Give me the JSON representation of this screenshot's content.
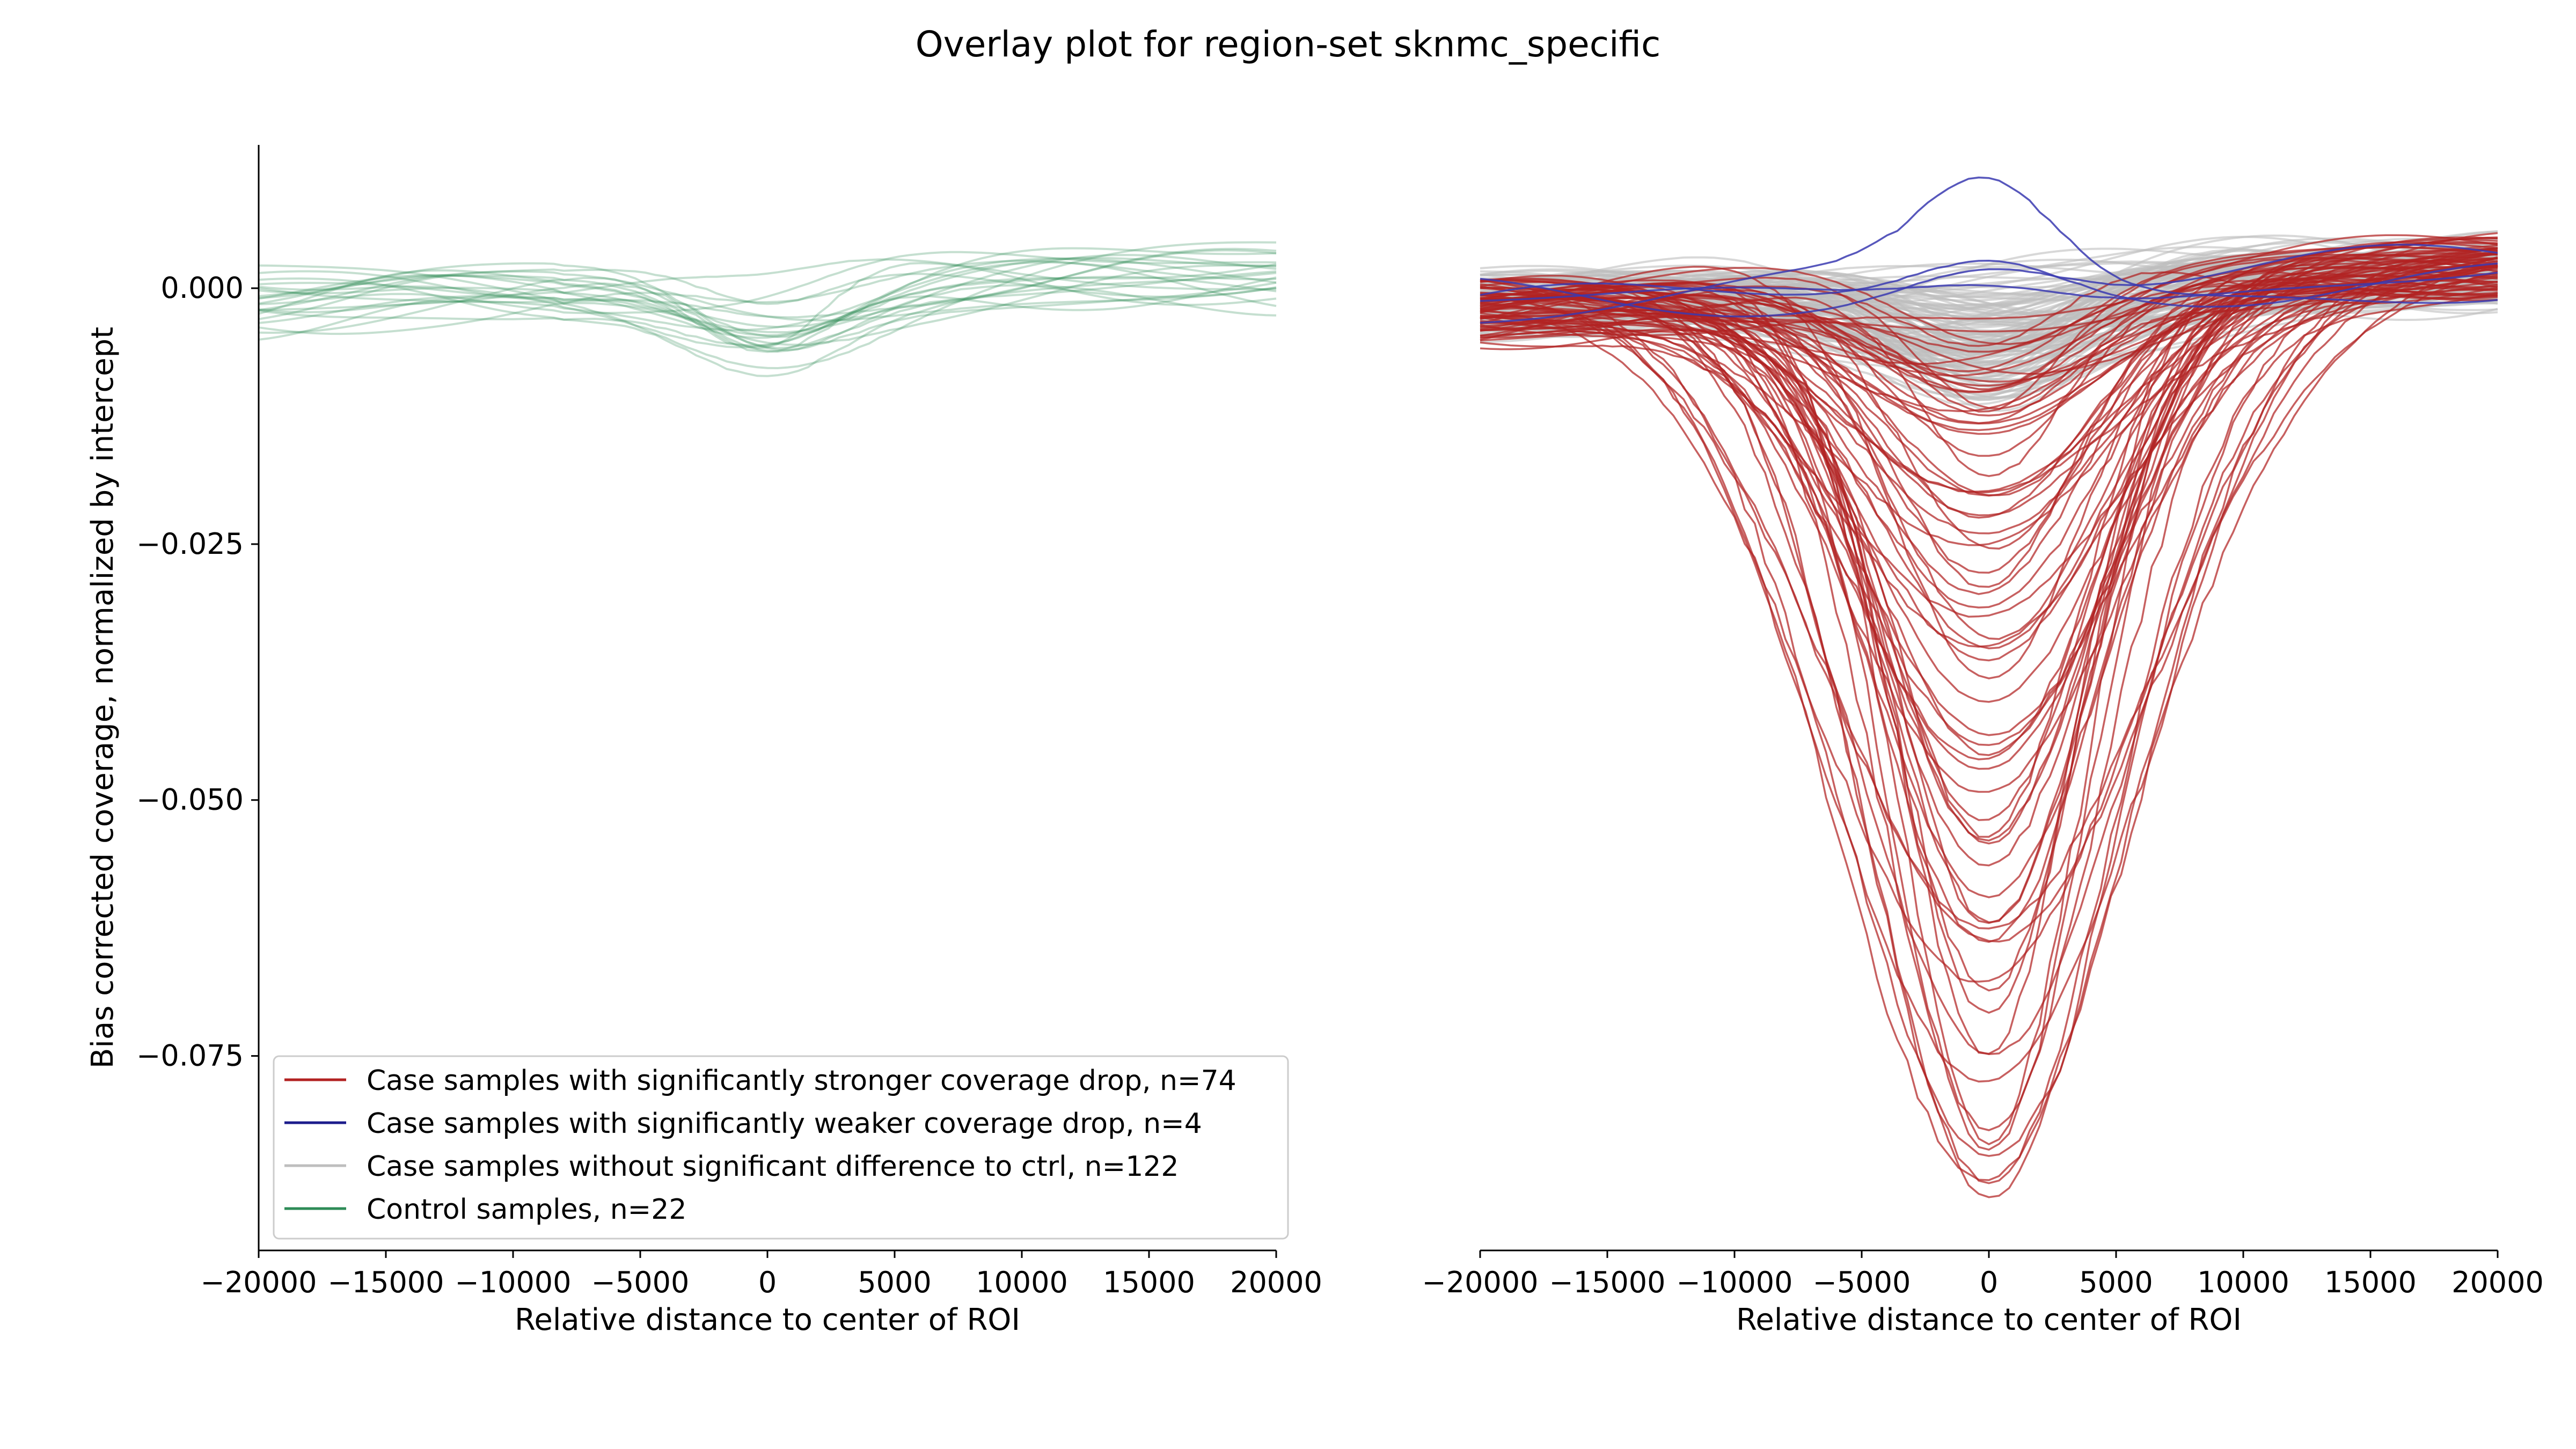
{
  "title": "Overlay plot for region-set sknmc_specific",
  "colors": {
    "stronger": "#b22222",
    "weaker": "#1c1c8c",
    "nosig": "#bebebe",
    "control": "#2e8b57",
    "weaker_line": "#3a3ab0"
  },
  "chart_data": [
    {
      "type": "line",
      "panel": "left",
      "xlabel": "Relative distance to center of ROI",
      "ylabel": "Bias corrected coverage, normalized by intercept",
      "xlim": [
        -20000,
        20000
      ],
      "ylim": [
        -0.094,
        0.014
      ],
      "xticks": [
        -20000,
        -15000,
        -10000,
        -5000,
        0,
        5000,
        10000,
        15000,
        20000
      ],
      "xtick_labels": [
        "−20000",
        "−15000",
        "−10000",
        "−5000",
        "0",
        "5000",
        "10000",
        "15000",
        "20000"
      ],
      "yticks": [
        0.0,
        -0.025,
        -0.05,
        -0.075
      ],
      "ytick_labels": [
        "0.000",
        "−0.025",
        "−0.050",
        "−0.075"
      ],
      "spines": "left and bottom only",
      "grid": false,
      "legend": {
        "placement": "lower-left",
        "entries": [
          {
            "label": "Case samples with significantly stronger coverage drop, n=74",
            "color": "#b22222"
          },
          {
            "label": "Case samples with significantly weaker coverage drop, n=4",
            "color": "#1c1c8c"
          },
          {
            "label": "Case samples without significant difference to ctrl, n=122",
            "color": "#bebebe"
          },
          {
            "label": "Control samples, n=22",
            "color": "#2e8b57"
          }
        ]
      },
      "series_groups": [
        {
          "group": "Control samples",
          "count": 22,
          "color": "#2e8b57",
          "summary": {
            "center_dip_range": [
              -0.008,
              -0.001
            ],
            "edge_range": [
              -0.005,
              0.005
            ]
          }
        }
      ]
    },
    {
      "type": "line",
      "panel": "right",
      "xlabel": "Relative distance to center of ROI",
      "xlim": [
        -20000,
        20000
      ],
      "ylim": [
        -0.094,
        0.014
      ],
      "xticks": [
        -20000,
        -15000,
        -10000,
        -5000,
        0,
        5000,
        10000,
        15000,
        20000
      ],
      "xtick_labels": [
        "−20000",
        "−15000",
        "−10000",
        "−5000",
        "0",
        "5000",
        "10000",
        "15000",
        "20000"
      ],
      "spines": "bottom only",
      "grid": false,
      "series_groups": [
        {
          "group": "Case samples without significant difference to ctrl",
          "count": 122,
          "color": "#bebebe",
          "summary": {
            "center_dip_range": [
              -0.01,
              0.0
            ],
            "edge_range": [
              -0.005,
              0.007
            ]
          }
        },
        {
          "group": "Case samples with significantly stronger coverage drop",
          "count": 74,
          "color": "#b22222",
          "summary": {
            "center_dip_range": [
              -0.09,
              -0.004
            ],
            "edge_range": [
              -0.004,
              0.004
            ]
          }
        },
        {
          "group": "Case samples with significantly weaker coverage drop",
          "count": 4,
          "color": "#1c1c8c",
          "summary": {
            "center_peak_max": 0.009,
            "edge_range": [
              -0.002,
              0.003
            ]
          }
        }
      ]
    }
  ]
}
